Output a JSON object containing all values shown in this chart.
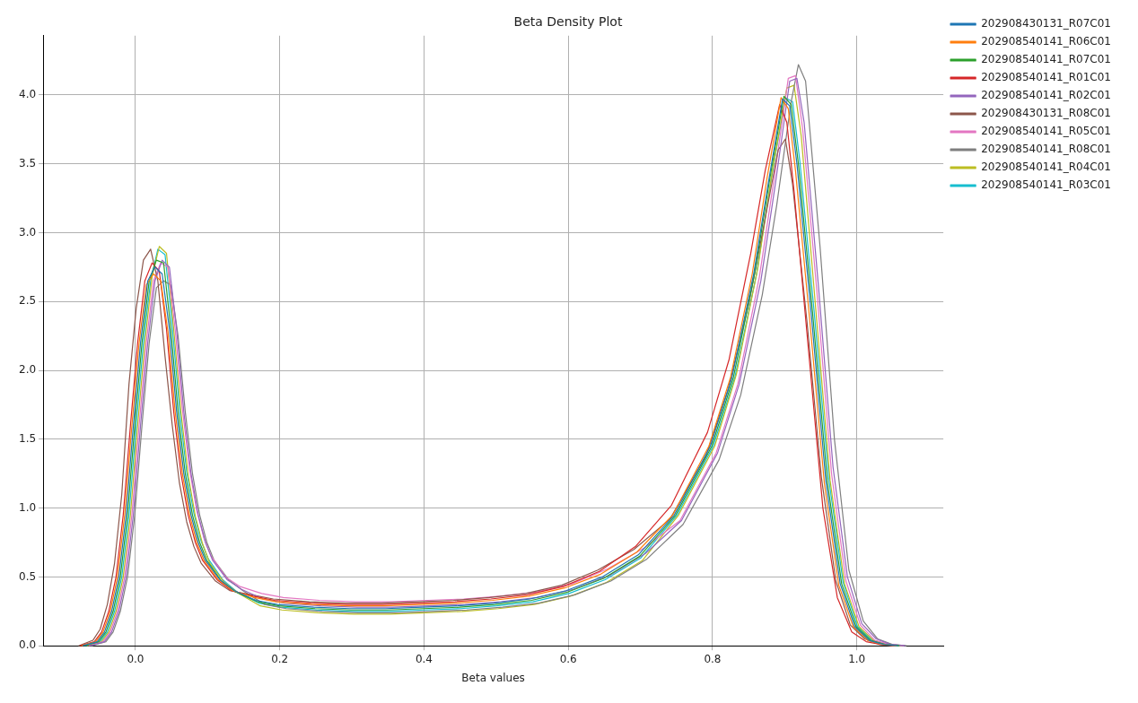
{
  "chart_data": {
    "type": "line",
    "title": "Beta Density Plot",
    "xlabel": "Beta values",
    "series": [
      {
        "name": "202908430131_R07C01",
        "color": "#1f77b4",
        "x": [
          -0.073,
          -0.053,
          -0.043,
          -0.033,
          -0.023,
          -0.013,
          -0.003,
          0.007,
          0.017,
          0.027,
          0.037,
          0.047,
          0.057,
          0.067,
          0.077,
          0.087,
          0.097,
          0.117,
          0.137,
          0.167,
          0.197,
          0.247,
          0.297,
          0.347,
          0.397,
          0.447,
          0.497,
          0.547,
          0.597,
          0.647,
          0.697,
          0.747,
          0.797,
          0.827,
          0.857,
          0.877,
          0.897,
          0.907,
          0.917,
          0.937,
          0.957,
          0.977,
          0.997,
          1.017,
          1.037,
          1.057
        ],
        "values": [
          0,
          0.03,
          0.1,
          0.25,
          0.5,
          0.95,
          1.6,
          2.2,
          2.65,
          2.75,
          2.7,
          2.3,
          1.7,
          1.25,
          0.95,
          0.75,
          0.62,
          0.48,
          0.4,
          0.33,
          0.3,
          0.28,
          0.27,
          0.27,
          0.28,
          0.29,
          0.31,
          0.34,
          0.4,
          0.5,
          0.66,
          0.95,
          1.45,
          1.95,
          2.7,
          3.35,
          3.97,
          3.92,
          3.5,
          2.4,
          1.2,
          0.45,
          0.14,
          0.04,
          0.01,
          0
        ]
      },
      {
        "name": "202908540141_R06C01",
        "color": "#ff7f0e",
        "x": [
          -0.075,
          -0.055,
          -0.045,
          -0.035,
          -0.025,
          -0.015,
          -0.005,
          0.005,
          0.015,
          0.025,
          0.035,
          0.045,
          0.055,
          0.065,
          0.075,
          0.085,
          0.095,
          0.115,
          0.135,
          0.165,
          0.195,
          0.245,
          0.295,
          0.345,
          0.395,
          0.445,
          0.495,
          0.545,
          0.595,
          0.645,
          0.695,
          0.745,
          0.795,
          0.825,
          0.855,
          0.875,
          0.895,
          0.905,
          0.915,
          0.935,
          0.955,
          0.975,
          0.995,
          1.015,
          1.035,
          1.055
        ],
        "values": [
          0,
          0.03,
          0.1,
          0.25,
          0.5,
          0.95,
          1.6,
          2.2,
          2.62,
          2.7,
          2.65,
          2.28,
          1.7,
          1.25,
          0.95,
          0.75,
          0.62,
          0.48,
          0.4,
          0.35,
          0.32,
          0.3,
          0.29,
          0.29,
          0.3,
          0.31,
          0.33,
          0.36,
          0.42,
          0.52,
          0.68,
          0.95,
          1.45,
          1.95,
          2.7,
          3.38,
          3.98,
          3.9,
          3.45,
          2.35,
          1.18,
          0.44,
          0.14,
          0.04,
          0.01,
          0
        ]
      },
      {
        "name": "202908540141_R07C01",
        "color": "#2ca02c",
        "x": [
          -0.071,
          -0.051,
          -0.041,
          -0.031,
          -0.021,
          -0.011,
          -0.001,
          0.009,
          0.019,
          0.029,
          0.039,
          0.049,
          0.059,
          0.069,
          0.079,
          0.089,
          0.099,
          0.119,
          0.139,
          0.169,
          0.199,
          0.249,
          0.299,
          0.349,
          0.399,
          0.449,
          0.499,
          0.549,
          0.599,
          0.649,
          0.699,
          0.749,
          0.799,
          0.829,
          0.859,
          0.879,
          0.899,
          0.909,
          0.919,
          0.939,
          0.959,
          0.979,
          0.999,
          1.019,
          1.039,
          1.059
        ],
        "values": [
          0,
          0.03,
          0.1,
          0.25,
          0.5,
          0.95,
          1.6,
          2.2,
          2.65,
          2.8,
          2.78,
          2.3,
          1.7,
          1.25,
          0.95,
          0.75,
          0.62,
          0.47,
          0.39,
          0.32,
          0.29,
          0.27,
          0.26,
          0.26,
          0.27,
          0.28,
          0.3,
          0.33,
          0.39,
          0.49,
          0.65,
          0.95,
          1.45,
          1.95,
          2.72,
          3.38,
          3.99,
          3.93,
          3.5,
          2.4,
          1.2,
          0.45,
          0.14,
          0.04,
          0.01,
          0
        ]
      },
      {
        "name": "202908540141_R01C01",
        "color": "#d62728",
        "x": [
          -0.077,
          -0.057,
          -0.047,
          -0.037,
          -0.027,
          -0.017,
          -0.007,
          0.003,
          0.013,
          0.023,
          0.033,
          0.043,
          0.053,
          0.063,
          0.073,
          0.083,
          0.093,
          0.113,
          0.133,
          0.163,
          0.193,
          0.243,
          0.293,
          0.343,
          0.393,
          0.443,
          0.493,
          0.543,
          0.593,
          0.643,
          0.693,
          0.743,
          0.793,
          0.823,
          0.853,
          0.873,
          0.893,
          0.903,
          0.913,
          0.933,
          0.953,
          0.973,
          0.993,
          1.013,
          1.033,
          1.053
        ],
        "values": [
          0,
          0.03,
          0.1,
          0.25,
          0.5,
          0.95,
          1.6,
          2.2,
          2.65,
          2.78,
          2.72,
          2.3,
          1.7,
          1.25,
          0.95,
          0.75,
          0.62,
          0.48,
          0.4,
          0.36,
          0.33,
          0.31,
          0.3,
          0.3,
          0.31,
          0.32,
          0.34,
          0.37,
          0.43,
          0.54,
          0.72,
          1.02,
          1.55,
          2.08,
          2.85,
          3.45,
          3.93,
          3.8,
          3.3,
          2.15,
          1.0,
          0.35,
          0.1,
          0.03,
          0.01,
          0
        ]
      },
      {
        "name": "202908540141_R02C01",
        "color": "#9467bd",
        "x": [
          -0.063,
          -0.043,
          -0.033,
          -0.023,
          -0.013,
          -0.003,
          0.007,
          0.017,
          0.027,
          0.037,
          0.047,
          0.057,
          0.067,
          0.077,
          0.087,
          0.097,
          0.107,
          0.127,
          0.147,
          0.177,
          0.207,
          0.257,
          0.307,
          0.357,
          0.407,
          0.457,
          0.507,
          0.557,
          0.607,
          0.657,
          0.707,
          0.757,
          0.807,
          0.837,
          0.867,
          0.887,
          0.907,
          0.917,
          0.927,
          0.947,
          0.967,
          0.987,
          1.007,
          1.027,
          1.047,
          1.067
        ],
        "values": [
          0,
          0.03,
          0.1,
          0.25,
          0.5,
          0.95,
          1.6,
          2.2,
          2.65,
          2.8,
          2.75,
          2.3,
          1.7,
          1.25,
          0.95,
          0.75,
          0.62,
          0.48,
          0.41,
          0.34,
          0.31,
          0.29,
          0.28,
          0.28,
          0.29,
          0.3,
          0.32,
          0.35,
          0.41,
          0.51,
          0.67,
          0.91,
          1.4,
          1.9,
          2.65,
          3.35,
          4.1,
          4.12,
          3.8,
          2.6,
          1.3,
          0.5,
          0.16,
          0.05,
          0.01,
          0
        ]
      },
      {
        "name": "202908430131_R08C01",
        "color": "#8c564b",
        "x": [
          -0.079,
          -0.059,
          -0.049,
          -0.039,
          -0.029,
          -0.019,
          -0.009,
          0.001,
          0.011,
          0.021,
          0.031,
          0.041,
          0.051,
          0.061,
          0.071,
          0.081,
          0.091,
          0.111,
          0.131,
          0.161,
          0.191,
          0.241,
          0.291,
          0.341,
          0.391,
          0.441,
          0.491,
          0.541,
          0.591,
          0.641,
          0.691,
          0.741,
          0.791,
          0.821,
          0.851,
          0.871,
          0.891,
          0.901,
          0.911,
          0.931,
          0.951,
          0.971,
          0.991,
          1.011,
          1.031,
          1.051
        ],
        "values": [
          0,
          0.04,
          0.12,
          0.3,
          0.6,
          1.1,
          1.9,
          2.45,
          2.8,
          2.88,
          2.65,
          2.1,
          1.6,
          1.18,
          0.9,
          0.72,
          0.6,
          0.47,
          0.4,
          0.37,
          0.34,
          0.32,
          0.31,
          0.31,
          0.32,
          0.33,
          0.35,
          0.38,
          0.44,
          0.55,
          0.7,
          0.92,
          1.38,
          1.85,
          2.5,
          3.05,
          3.6,
          3.68,
          3.35,
          2.35,
          1.22,
          0.47,
          0.15,
          0.05,
          0.01,
          0
        ]
      },
      {
        "name": "202908540141_R05C01",
        "color": "#e377c2",
        "x": [
          -0.065,
          -0.045,
          -0.035,
          -0.025,
          -0.015,
          -0.005,
          0.005,
          0.015,
          0.025,
          0.035,
          0.045,
          0.055,
          0.065,
          0.075,
          0.085,
          0.095,
          0.105,
          0.125,
          0.145,
          0.175,
          0.205,
          0.255,
          0.305,
          0.355,
          0.405,
          0.455,
          0.505,
          0.555,
          0.605,
          0.655,
          0.705,
          0.755,
          0.805,
          0.835,
          0.865,
          0.885,
          0.905,
          0.915,
          0.925,
          0.945,
          0.965,
          0.985,
          1.005,
          1.025,
          1.045,
          1.065
        ],
        "values": [
          0,
          0.03,
          0.1,
          0.25,
          0.5,
          0.95,
          1.6,
          2.2,
          2.65,
          2.78,
          2.75,
          2.3,
          1.72,
          1.28,
          0.98,
          0.78,
          0.65,
          0.5,
          0.43,
          0.38,
          0.35,
          0.33,
          0.32,
          0.32,
          0.33,
          0.34,
          0.36,
          0.39,
          0.45,
          0.56,
          0.71,
          0.91,
          1.4,
          1.9,
          2.68,
          3.38,
          4.12,
          4.14,
          3.75,
          2.55,
          1.25,
          0.47,
          0.15,
          0.04,
          0.01,
          0
        ]
      },
      {
        "name": "202908540141_R08C01",
        "color": "#7f7f7f",
        "x": [
          -0.061,
          -0.041,
          -0.031,
          -0.021,
          -0.011,
          -0.001,
          0.009,
          0.019,
          0.029,
          0.039,
          0.049,
          0.059,
          0.069,
          0.079,
          0.089,
          0.099,
          0.109,
          0.129,
          0.149,
          0.179,
          0.209,
          0.259,
          0.309,
          0.359,
          0.409,
          0.459,
          0.509,
          0.559,
          0.609,
          0.659,
          0.709,
          0.759,
          0.809,
          0.839,
          0.869,
          0.889,
          0.909,
          0.919,
          0.929,
          0.949,
          0.969,
          0.989,
          1.009,
          1.029,
          1.049,
          1.069
        ],
        "values": [
          0,
          0.03,
          0.1,
          0.25,
          0.5,
          0.95,
          1.6,
          2.2,
          2.6,
          2.65,
          2.62,
          2.25,
          1.7,
          1.25,
          0.95,
          0.75,
          0.62,
          0.48,
          0.4,
          0.3,
          0.27,
          0.25,
          0.24,
          0.24,
          0.25,
          0.26,
          0.28,
          0.31,
          0.37,
          0.47,
          0.63,
          0.88,
          1.35,
          1.82,
          2.55,
          3.2,
          3.95,
          4.22,
          4.1,
          2.9,
          1.5,
          0.55,
          0.18,
          0.05,
          0.01,
          0
        ]
      },
      {
        "name": "202908540141_R04C01",
        "color": "#bcbd22",
        "x": [
          -0.067,
          -0.047,
          -0.037,
          -0.027,
          -0.017,
          -0.007,
          0.003,
          0.013,
          0.023,
          0.033,
          0.043,
          0.053,
          0.063,
          0.073,
          0.083,
          0.093,
          0.103,
          0.123,
          0.143,
          0.173,
          0.203,
          0.253,
          0.303,
          0.353,
          0.403,
          0.453,
          0.503,
          0.553,
          0.603,
          0.653,
          0.703,
          0.753,
          0.803,
          0.833,
          0.863,
          0.883,
          0.903,
          0.913,
          0.923,
          0.943,
          0.963,
          0.983,
          1.003,
          1.023,
          1.043,
          1.063
        ],
        "values": [
          0,
          0.03,
          0.1,
          0.25,
          0.5,
          0.95,
          1.6,
          2.2,
          2.68,
          2.9,
          2.85,
          2.3,
          1.7,
          1.24,
          0.94,
          0.74,
          0.6,
          0.46,
          0.38,
          0.29,
          0.26,
          0.24,
          0.23,
          0.23,
          0.24,
          0.25,
          0.27,
          0.3,
          0.36,
          0.46,
          0.62,
          0.95,
          1.45,
          1.97,
          2.75,
          3.45,
          4.05,
          4.07,
          3.7,
          2.45,
          1.2,
          0.45,
          0.14,
          0.04,
          0.01,
          0
        ]
      },
      {
        "name": "202908540141_R03C01",
        "color": "#17becf",
        "x": [
          -0.069,
          -0.049,
          -0.039,
          -0.029,
          -0.019,
          -0.009,
          0.001,
          0.011,
          0.021,
          0.031,
          0.041,
          0.051,
          0.061,
          0.071,
          0.081,
          0.091,
          0.101,
          0.121,
          0.141,
          0.171,
          0.201,
          0.251,
          0.301,
          0.351,
          0.401,
          0.451,
          0.501,
          0.551,
          0.601,
          0.651,
          0.701,
          0.751,
          0.801,
          0.831,
          0.861,
          0.881,
          0.901,
          0.911,
          0.921,
          0.941,
          0.961,
          0.981,
          1.001,
          1.021,
          1.041,
          1.061
        ],
        "values": [
          0,
          0.03,
          0.1,
          0.25,
          0.5,
          0.95,
          1.6,
          2.2,
          2.65,
          2.88,
          2.84,
          2.32,
          1.72,
          1.26,
          0.96,
          0.76,
          0.63,
          0.48,
          0.39,
          0.31,
          0.28,
          0.26,
          0.25,
          0.25,
          0.26,
          0.27,
          0.29,
          0.32,
          0.38,
          0.48,
          0.64,
          0.95,
          1.45,
          1.95,
          2.7,
          3.38,
          3.98,
          3.95,
          3.52,
          2.42,
          1.22,
          0.46,
          0.14,
          0.04,
          0.01,
          0
        ]
      }
    ],
    "xlim": [
      -0.128,
      1.12
    ],
    "xticks": [
      {
        "value": 0,
        "label": "0.0"
      },
      0.2,
      0.4,
      0.6,
      0.8,
      {
        "value": 1,
        "label": "1.0"
      }
    ],
    "ylim": [
      0,
      4.43
    ],
    "yticks": [
      {
        "value": 0,
        "label": "0.0"
      },
      0.5,
      {
        "value": 1,
        "label": "1.0"
      },
      1.5,
      {
        "value": 2,
        "label": "2.0"
      },
      2.5,
      {
        "value": 3,
        "label": "3.0"
      },
      3.5,
      {
        "value": 4,
        "label": "4.0"
      }
    ],
    "grid": true,
    "legend": "top right"
  }
}
